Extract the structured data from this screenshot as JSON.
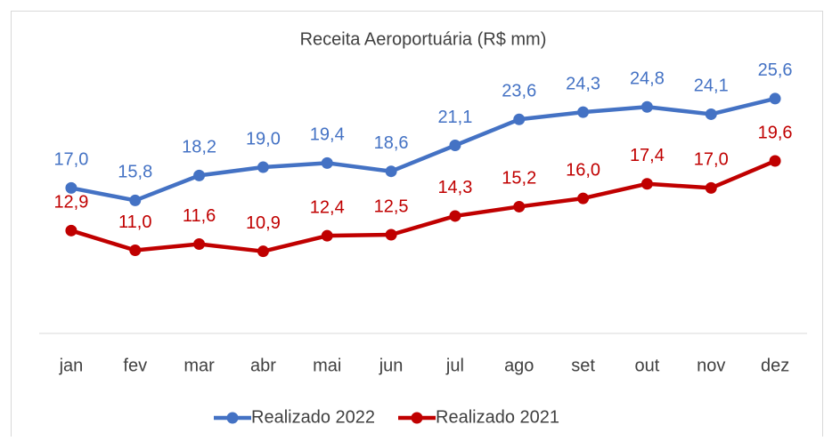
{
  "chart_data": {
    "type": "line",
    "title": "Receita Aeroportuária (R$ mm)",
    "categories": [
      "jan",
      "fev",
      "mar",
      "abr",
      "mai",
      "jun",
      "jul",
      "ago",
      "set",
      "out",
      "nov",
      "dez"
    ],
    "series": [
      {
        "name": "Realizado 2022",
        "color": "#4472c4",
        "values": [
          17.0,
          15.8,
          18.2,
          19.0,
          19.4,
          18.6,
          21.1,
          23.6,
          24.3,
          24.8,
          24.1,
          25.6
        ],
        "value_labels": [
          "17,0",
          "15,8",
          "18,2",
          "19,0",
          "19,4",
          "18,6",
          "21,1",
          "23,6",
          "24,3",
          "24,8",
          "24,1",
          "25,6"
        ]
      },
      {
        "name": "Realizado 2021",
        "color": "#c00000",
        "values": [
          12.9,
          11.0,
          11.6,
          10.9,
          12.4,
          12.5,
          14.3,
          15.2,
          16.0,
          17.4,
          17.0,
          19.6
        ],
        "value_labels": [
          "12,9",
          "11,0",
          "11,6",
          "10,9",
          "12,4",
          "12,5",
          "14,3",
          "15,2",
          "16,0",
          "17,4",
          "17,0",
          "19,6"
        ]
      }
    ],
    "ylim": [
      3,
      30
    ],
    "legend": "bottom"
  }
}
